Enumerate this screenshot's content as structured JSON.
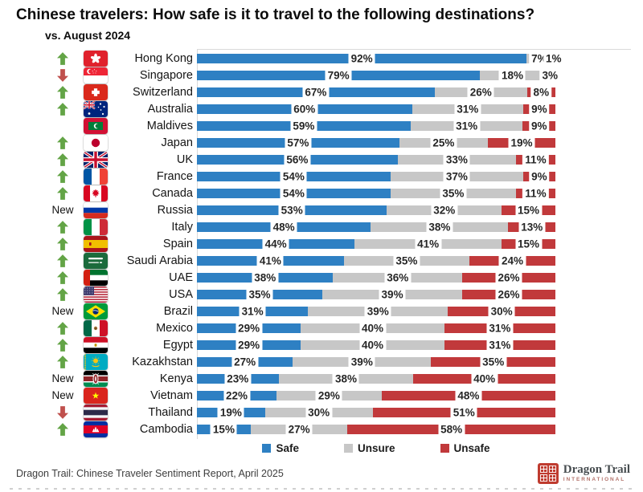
{
  "title": "Chinese travelers: How safe is it to travel to the following destinations?",
  "subtitle": "vs. August 2024",
  "new_label": "New",
  "colors": {
    "safe": "#2e80c3",
    "unsure": "#c7c7c7",
    "unsafe": "#c1393b",
    "arrow_up": "#63a446",
    "arrow_down": "#c0504d"
  },
  "legend": {
    "items": [
      {
        "key": "safe",
        "label": "Safe"
      },
      {
        "key": "unsure",
        "label": "Unsure"
      },
      {
        "key": "unsafe",
        "label": "Unsafe"
      }
    ]
  },
  "footer": {
    "source": "Dragon Trail: Chinese Traveler Sentiment Report, April 2025",
    "logo_title": "Dragon Trail",
    "logo_subtitle": "INTERNATIONAL"
  },
  "chart_data": {
    "type": "bar",
    "variant": "horizontal-stacked-100pct",
    "unit": "%",
    "series": [
      "Safe",
      "Unsure",
      "Unsafe"
    ],
    "legend_position": "bottom",
    "comparison_note": "vs. August 2024",
    "rows": [
      {
        "country": "Hong Kong",
        "flag": "hk",
        "change": "up",
        "values": {
          "safe": 92,
          "unsure": 7,
          "unsafe": 1
        }
      },
      {
        "country": "Singapore",
        "flag": "sg",
        "change": "down",
        "values": {
          "safe": 79,
          "unsure": 18,
          "unsafe": 3
        }
      },
      {
        "country": "Switzerland",
        "flag": "ch",
        "change": "up",
        "values": {
          "safe": 67,
          "unsure": 26,
          "unsafe": 8
        }
      },
      {
        "country": "Australia",
        "flag": "au",
        "change": "up",
        "values": {
          "safe": 60,
          "unsure": 31,
          "unsafe": 9
        }
      },
      {
        "country": "Maldives",
        "flag": "mv",
        "change": "none",
        "values": {
          "safe": 59,
          "unsure": 31,
          "unsafe": 9
        }
      },
      {
        "country": "Japan",
        "flag": "jp",
        "change": "up",
        "values": {
          "safe": 57,
          "unsure": 25,
          "unsafe": 19
        }
      },
      {
        "country": "UK",
        "flag": "uk",
        "change": "up",
        "values": {
          "safe": 56,
          "unsure": 33,
          "unsafe": 11
        }
      },
      {
        "country": "France",
        "flag": "fr",
        "change": "up",
        "values": {
          "safe": 54,
          "unsure": 37,
          "unsafe": 9
        }
      },
      {
        "country": "Canada",
        "flag": "ca",
        "change": "up",
        "values": {
          "safe": 54,
          "unsure": 35,
          "unsafe": 11
        }
      },
      {
        "country": "Russia",
        "flag": "ru",
        "change": "new",
        "values": {
          "safe": 53,
          "unsure": 32,
          "unsafe": 15
        }
      },
      {
        "country": "Italy",
        "flag": "it",
        "change": "up",
        "values": {
          "safe": 48,
          "unsure": 38,
          "unsafe": 13
        }
      },
      {
        "country": "Spain",
        "flag": "es",
        "change": "up",
        "values": {
          "safe": 44,
          "unsure": 41,
          "unsafe": 15
        }
      },
      {
        "country": "Saudi Arabia",
        "flag": "sa",
        "change": "up",
        "values": {
          "safe": 41,
          "unsure": 35,
          "unsafe": 24
        }
      },
      {
        "country": "UAE",
        "flag": "ae",
        "change": "up",
        "values": {
          "safe": 38,
          "unsure": 36,
          "unsafe": 26
        }
      },
      {
        "country": "USA",
        "flag": "us",
        "change": "up",
        "values": {
          "safe": 35,
          "unsure": 39,
          "unsafe": 26
        }
      },
      {
        "country": "Brazil",
        "flag": "br",
        "change": "new",
        "values": {
          "safe": 31,
          "unsure": 39,
          "unsafe": 30
        }
      },
      {
        "country": "Mexico",
        "flag": "mx",
        "change": "up",
        "values": {
          "safe": 29,
          "unsure": 40,
          "unsafe": 31
        }
      },
      {
        "country": "Egypt",
        "flag": "eg",
        "change": "up",
        "values": {
          "safe": 29,
          "unsure": 40,
          "unsafe": 31
        }
      },
      {
        "country": "Kazakhstan",
        "flag": "kz",
        "change": "up",
        "values": {
          "safe": 27,
          "unsure": 39,
          "unsafe": 35
        }
      },
      {
        "country": "Kenya",
        "flag": "ke",
        "change": "new",
        "values": {
          "safe": 23,
          "unsure": 38,
          "unsafe": 40
        }
      },
      {
        "country": "Vietnam",
        "flag": "vn",
        "change": "new",
        "values": {
          "safe": 22,
          "unsure": 29,
          "unsafe": 48
        }
      },
      {
        "country": "Thailand",
        "flag": "th",
        "change": "down",
        "values": {
          "safe": 19,
          "unsure": 30,
          "unsafe": 51
        }
      },
      {
        "country": "Cambodia",
        "flag": "kh",
        "change": "up",
        "values": {
          "safe": 15,
          "unsure": 27,
          "unsafe": 58
        }
      }
    ]
  }
}
